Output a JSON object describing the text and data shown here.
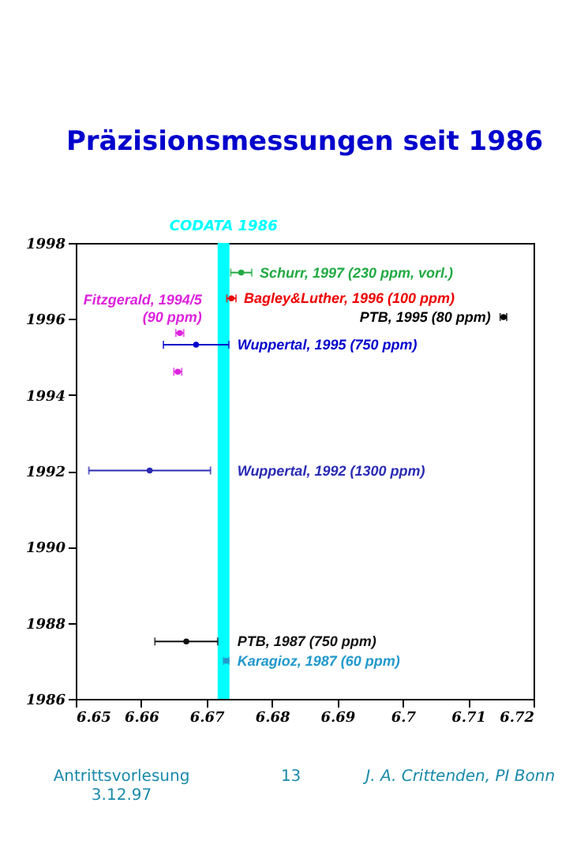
{
  "chart_data": {
    "type": "scatter",
    "title": "Präzisionsmessungen seit 1986",
    "xlim": [
      6.65,
      6.72
    ],
    "xticks": [
      6.65,
      6.66,
      6.67,
      6.68,
      6.69,
      6.7,
      6.71,
      6.72
    ],
    "ylim": [
      1986,
      1998
    ],
    "yticks": [
      1986,
      1988,
      1990,
      1992,
      1994,
      1996,
      1998
    ],
    "grid": false,
    "legend": false,
    "marker": "circle",
    "bands": [
      {
        "axis": "x",
        "from": 6.6717,
        "to": 6.6735,
        "label": "CODATA 1986",
        "color": "#00ffff"
      }
    ],
    "series": [
      {
        "name": "Schurr, 1997 (230 ppm, vorl.)",
        "color": "#22aa44",
        "x": [
          6.6753
        ],
        "values": [
          1997.22
        ],
        "xerrors": [
          0.0016
        ]
      },
      {
        "name": "Bagley&Luther, 1996 (100 ppm)",
        "color": "#ee0000",
        "x": [
          6.6738
        ],
        "values": [
          1996.54
        ],
        "xerrors": [
          0.0007
        ]
      },
      {
        "name": "PTB, 1995 (80 ppm)",
        "color": "#000000",
        "x": [
          6.7154
        ],
        "values": [
          1996.05
        ],
        "xerrors": [
          0.0005
        ]
      },
      {
        "name": "Fitzgerald, 1994/5\n(90 ppm)",
        "color": "#dd22dd",
        "x": [
          6.6659,
          6.6656
        ],
        "values": [
          1995.63,
          1994.61
        ],
        "xerrors": [
          0.0006,
          0.0006
        ]
      },
      {
        "name": "Wuppertal, 1995 (750 ppm)",
        "color": "#0000cc",
        "x": [
          6.6684
        ],
        "values": [
          1995.32
        ],
        "xerrors": [
          0.005
        ]
      },
      {
        "name": "Wuppertal, 1992 (1300 ppm)",
        "color": "#2a2ab4",
        "x": [
          6.6613
        ],
        "values": [
          1992.01
        ],
        "xerrors": [
          0.0093
        ]
      },
      {
        "name": "PTB, 1987 (750 ppm)",
        "color": "#111111",
        "x": [
          6.6669
        ],
        "values": [
          1987.51
        ],
        "xerrors": [
          0.0048
        ]
      },
      {
        "name": "Karagioz, 1987 (60 ppm)",
        "color": "#2299cc",
        "x": [
          6.673
        ],
        "values": [
          1987.0
        ],
        "xerrors": [
          0.0004
        ]
      }
    ],
    "annotations": [
      "Antrittsvorlesung\n3.12.97",
      "13",
      "J. A. Crittenden, PI Bonn"
    ]
  }
}
